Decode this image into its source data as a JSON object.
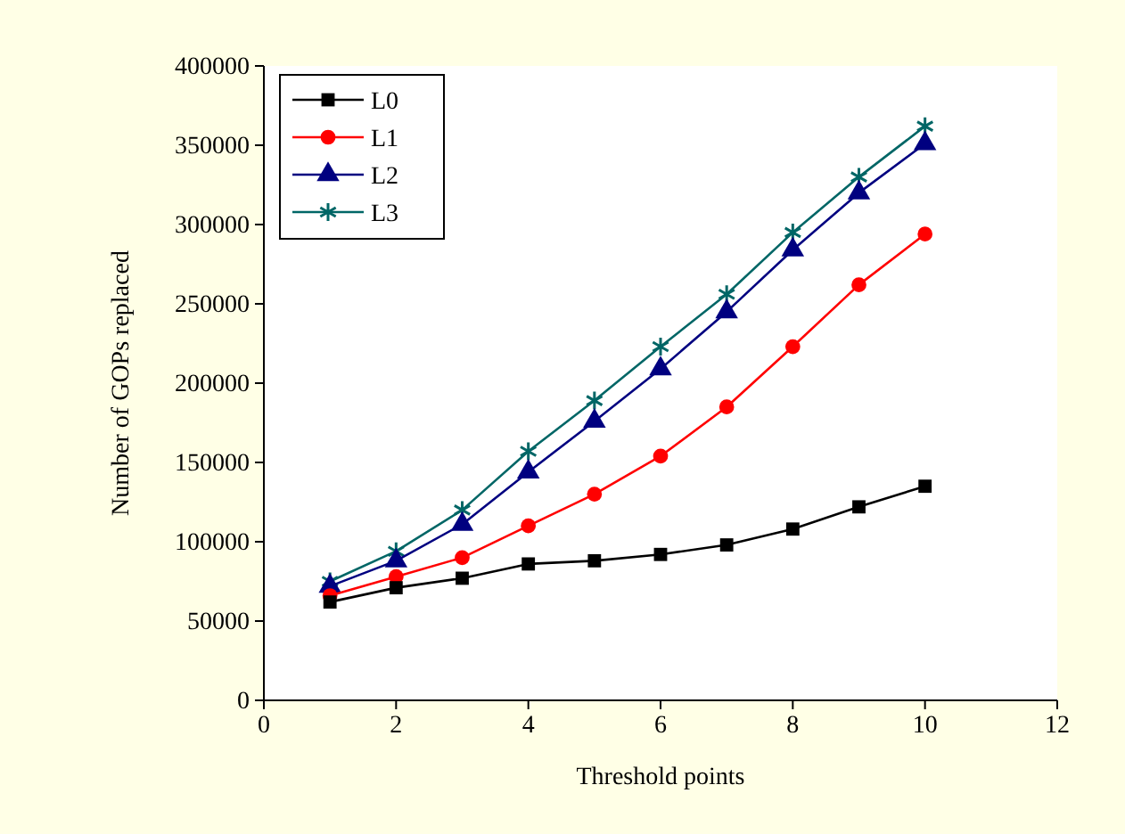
{
  "chart_data": {
    "type": "line",
    "xlabel": "Threshold points",
    "ylabel": "Number of GOPs replaced",
    "x": [
      1,
      2,
      3,
      4,
      5,
      6,
      7,
      8,
      9,
      10
    ],
    "series": [
      {
        "name": "L0",
        "color": "#000000",
        "marker": "square",
        "values": [
          62000,
          71000,
          77000,
          86000,
          88000,
          92000,
          98000,
          108000,
          122000,
          135000
        ]
      },
      {
        "name": "L1",
        "color": "#ff0000",
        "marker": "circle",
        "values": [
          66000,
          78000,
          90000,
          110000,
          130000,
          154000,
          185000,
          223000,
          262000,
          294000
        ]
      },
      {
        "name": "L2",
        "color": "#000080",
        "marker": "triangle",
        "values": [
          72000,
          88000,
          111000,
          144000,
          176000,
          209000,
          245000,
          284000,
          320000,
          351000
        ]
      },
      {
        "name": "L3",
        "color": "#006666",
        "marker": "cross",
        "values": [
          75000,
          94000,
          120000,
          157000,
          189000,
          223000,
          256000,
          295000,
          330000,
          362000
        ]
      }
    ],
    "xlim": [
      0,
      12
    ],
    "xticks": [
      0,
      2,
      4,
      6,
      8,
      10,
      12
    ],
    "ylim": [
      0,
      400000
    ],
    "yticks": [
      0,
      50000,
      100000,
      150000,
      200000,
      250000,
      300000,
      350000,
      400000
    ],
    "grid": false,
    "legend": "top left",
    "line_style": "solid"
  }
}
